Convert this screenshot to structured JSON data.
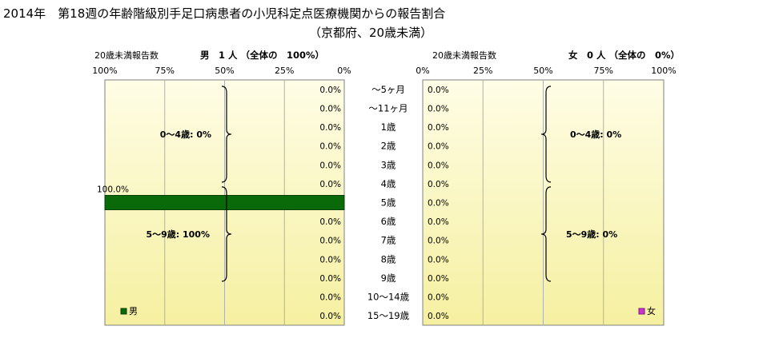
{
  "title": "2014年　第18週の年齢階級別手足口病患者の小児科定点医療機関からの報告割合",
  "subtitle": "（京都府、20歳未満）",
  "colors": {
    "male_bar": "#0a6a0a",
    "male_bar_edge": "#064006",
    "female_legend": "#cc33cc",
    "plot_bg_top": "#fffde6",
    "plot_bg_bottom": "#f5f0a0",
    "grid": "#b0b0b0",
    "brace": "#000000"
  },
  "age_labels": [
    "〜5ヶ月",
    "〜11ヶ月",
    "1歳",
    "2歳",
    "3歳",
    "4歳",
    "5歳",
    "6歳",
    "7歳",
    "8歳",
    "9歳",
    "10〜14歳",
    "15〜19歳"
  ],
  "chart_data": [
    {
      "type": "bar",
      "orientation": "horizontal-reversed",
      "header_left": "20歳未満報告数",
      "header_right": "男　1 人 （全体の　100%）",
      "x_ticks": [
        "100%",
        "75%",
        "50%",
        "25%",
        "0%"
      ],
      "xlim": [
        0,
        100
      ],
      "categories": [
        "〜5ヶ月",
        "〜11ヶ月",
        "1歳",
        "2歳",
        "3歳",
        "4歳",
        "5歳",
        "6歳",
        "7歳",
        "8歳",
        "9歳",
        "10〜14歳",
        "15〜19歳"
      ],
      "values": [
        0,
        0,
        0,
        0,
        0,
        0,
        100,
        0,
        0,
        0,
        0,
        0,
        0
      ],
      "data_labels": [
        "0.0%",
        "0.0%",
        "0.0%",
        "0.0%",
        "0.0%",
        "0.0%",
        "100.0%",
        "0.0%",
        "0.0%",
        "0.0%",
        "0.0%",
        "0.0%",
        "0.0%"
      ],
      "group_labels": [
        "0〜4歳: 0%",
        "5〜9歳: 100%"
      ],
      "legend": "男"
    },
    {
      "type": "bar",
      "orientation": "horizontal",
      "header_left": "20歳未満報告数",
      "header_right": "女　0 人 （全体の　0%）",
      "x_ticks": [
        "0%",
        "25%",
        "50%",
        "75%",
        "100%"
      ],
      "xlim": [
        0,
        100
      ],
      "categories": [
        "〜5ヶ月",
        "〜11ヶ月",
        "1歳",
        "2歳",
        "3歳",
        "4歳",
        "5歳",
        "6歳",
        "7歳",
        "8歳",
        "9歳",
        "10〜14歳",
        "15〜19歳"
      ],
      "values": [
        0,
        0,
        0,
        0,
        0,
        0,
        0,
        0,
        0,
        0,
        0,
        0,
        0
      ],
      "data_labels": [
        "0.0%",
        "0.0%",
        "0.0%",
        "0.0%",
        "0.0%",
        "0.0%",
        "0.0%",
        "0.0%",
        "0.0%",
        "0.0%",
        "0.0%",
        "0.0%",
        "0.0%"
      ],
      "group_labels": [
        "0〜4歳: 0%",
        "5〜9歳: 0%"
      ],
      "legend": "女"
    }
  ]
}
